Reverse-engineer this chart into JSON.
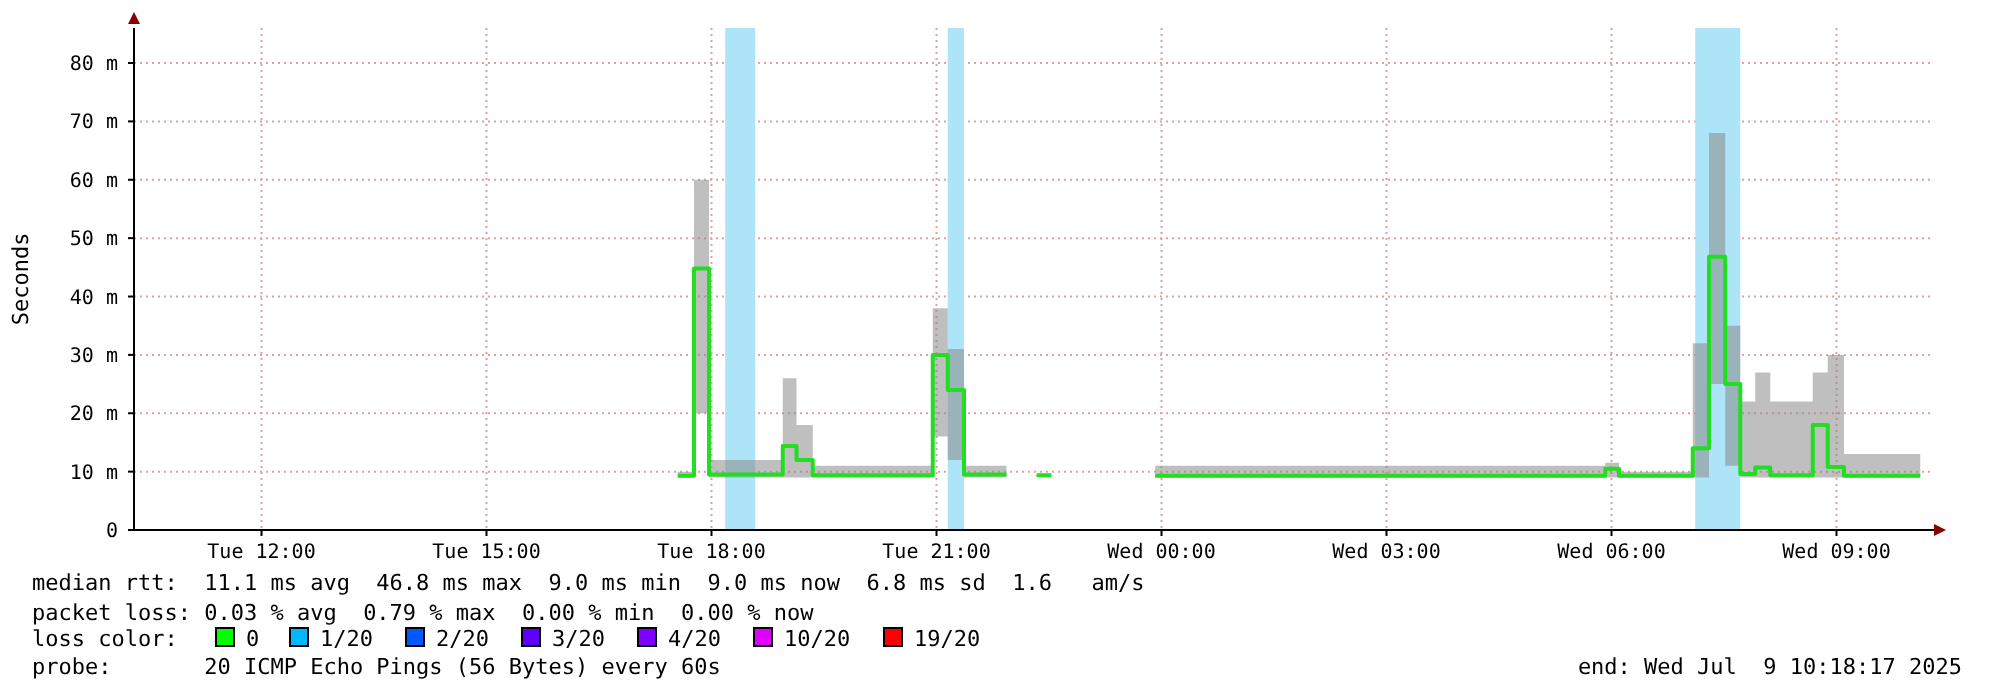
{
  "chart_data": {
    "type": "step",
    "ylabel": "Seconds",
    "x": [
      "2025-07-08T17:33",
      "2025-07-08T17:46",
      "2025-07-08T17:58",
      "2025-07-08T18:57",
      "2025-07-08T19:08",
      "2025-07-08T19:21",
      "2025-07-08T20:57",
      "2025-07-08T21:09",
      "2025-07-08T21:22",
      "2025-07-08T21:56",
      "2025-07-08T21:57",
      "2025-07-08T22:20",
      "2025-07-08T22:32",
      "2025-07-08T22:33",
      "2025-07-08T23:55",
      "2025-07-09T05:55",
      "2025-07-09T06:06",
      "2025-07-09T07:05",
      "2025-07-09T07:18",
      "2025-07-09T07:31",
      "2025-07-09T07:43",
      "2025-07-09T07:55",
      "2025-07-09T08:07",
      "2025-07-09T08:41",
      "2025-07-09T08:53",
      "2025-07-09T09:06",
      "2025-07-09T10:07"
    ],
    "series": [
      {
        "color": "#22dd22",
        "values": [
          9.3,
          44.8,
          9.5,
          14.4,
          12,
          9.4,
          30,
          24,
          9.5,
          9.5,
          null,
          9.4,
          9.4,
          null,
          9.3,
          10.5,
          9.3,
          14,
          46.8,
          25,
          9.6,
          10.7,
          9.4,
          18,
          10.8,
          9.3,
          9.3
        ],
        "lower": [
          9,
          20,
          9,
          9,
          9,
          9,
          16,
          12,
          9,
          9,
          null,
          null,
          null,
          null,
          9,
          9,
          9,
          9,
          25,
          11,
          9,
          9,
          9,
          9,
          9,
          9,
          9
        ],
        "upper": [
          10,
          60,
          12,
          26,
          18,
          11,
          38,
          31,
          11,
          11,
          null,
          null,
          null,
          null,
          11,
          11.5,
          10,
          32,
          68,
          35,
          22,
          27,
          22,
          27,
          30,
          13,
          13
        ]
      }
    ],
    "xlim": [
      "2025-07-08T10:18",
      "2025-07-09T10:18"
    ],
    "xticks": [
      {
        "value": "2025-07-08T12:00",
        "label": "Tue 12:00"
      },
      {
        "value": "2025-07-08T15:00",
        "label": "Tue 15:00"
      },
      {
        "value": "2025-07-08T18:00",
        "label": "Tue 18:00"
      },
      {
        "value": "2025-07-08T21:00",
        "label": "Tue 21:00"
      },
      {
        "value": "2025-07-09T00:00",
        "label": "Wed 00:00"
      },
      {
        "value": "2025-07-09T03:00",
        "label": "Wed 03:00"
      },
      {
        "value": "2025-07-09T06:00",
        "label": "Wed 06:00"
      },
      {
        "value": "2025-07-09T09:00",
        "label": "Wed 09:00"
      }
    ],
    "ylim": [
      0,
      86
    ],
    "yticks": [
      0,
      {
        "value": 10,
        "label": "10 m"
      },
      {
        "value": 20,
        "label": "20 m"
      },
      {
        "value": 30,
        "label": "30 m"
      },
      {
        "value": 40,
        "label": "40 m"
      },
      {
        "value": 50,
        "label": "50 m"
      },
      {
        "value": 60,
        "label": "60 m"
      },
      {
        "value": 70,
        "label": "70 m"
      },
      {
        "value": 80,
        "label": "80 m"
      }
    ],
    "bands": [
      {
        "axis": "x",
        "from": "2025-07-08T18:11",
        "to": "2025-07-08T18:35",
        "color": "#aee4f7"
      },
      {
        "axis": "x",
        "from": "2025-07-08T21:09",
        "to": "2025-07-08T21:22",
        "color": "#aee4f7"
      },
      {
        "axis": "x",
        "from": "2025-07-09T07:07",
        "to": "2025-07-09T07:43",
        "color": "#aee4f7"
      }
    ],
    "grid": true,
    "annotations": [
      "median rtt:  11.1 ms avg  46.8 ms max  9.0 ms min  9.0 ms now  6.8 ms sd  1.6   am/s",
      "packet loss: 0.03 % avg  0.79 % max  0.00 % min  0.00 % now",
      "loss color:",
      "0",
      "1/20",
      "2/20",
      "3/20",
      "4/20",
      "10/20",
      "19/20",
      "probe:       20 ICMP Echo Pings (56 Bytes) every 60s",
      "end: Wed Jul  9 10:18:17 2025"
    ]
  }
}
